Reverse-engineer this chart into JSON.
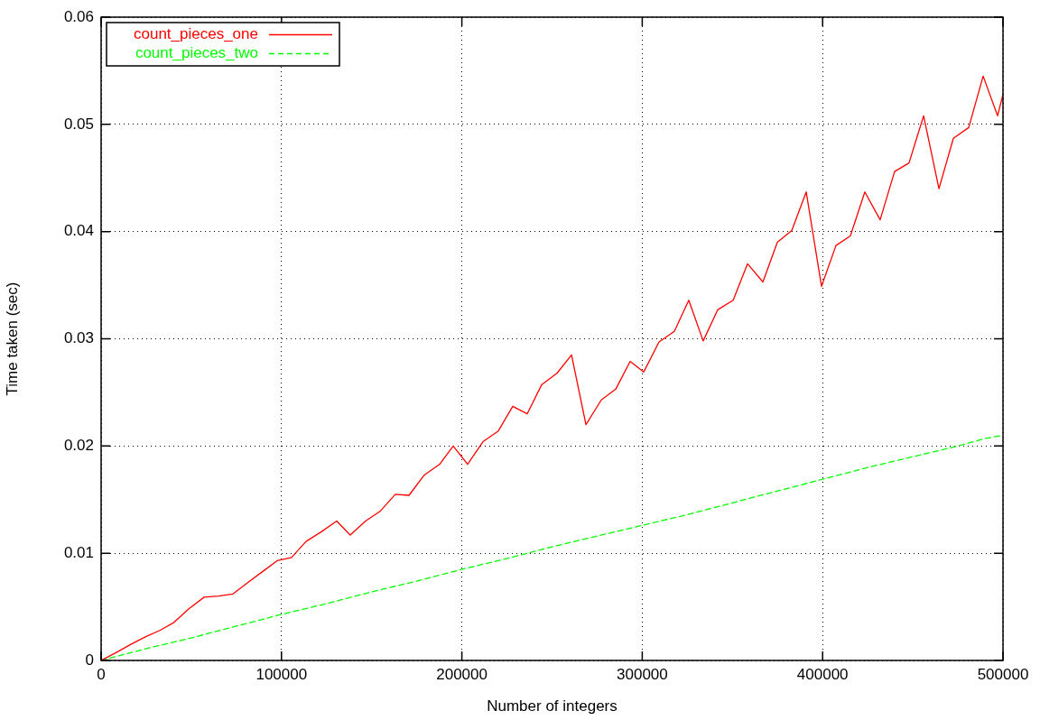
{
  "chart_data": {
    "type": "line",
    "xlabel": "Number of integers",
    "ylabel": "Time taken (sec)",
    "xlim": [
      0,
      500000
    ],
    "xticks": [
      0,
      100000,
      200000,
      300000,
      400000,
      500000
    ],
    "ylim": [
      0,
      0.06
    ],
    "yticks": [
      0,
      0.01,
      0.02,
      0.03,
      0.04,
      0.05,
      0.06
    ],
    "grid": true,
    "legend": "top left",
    "marker": "none",
    "series": [
      {
        "name": "count_pieces_one",
        "color": "#ff0000",
        "line_style": "solid",
        "x": [
          0,
          8000,
          16500,
          24500,
          32500,
          40000,
          48500,
          57100,
          65100,
          73100,
          81600,
          89600,
          97600,
          105600,
          113600,
          122100,
          130600,
          138100,
          146600,
          154600,
          163100,
          170700,
          179200,
          187700,
          195200,
          203200,
          211700,
          220200,
          228200,
          236200,
          244200,
          252800,
          260800,
          268800,
          277300,
          285300,
          293300,
          300800,
          309300,
          317800,
          325800,
          333800,
          341800,
          350400,
          358400,
          366900,
          374900,
          382900,
          390900,
          399400,
          407400,
          415400,
          423400,
          431900,
          439900,
          447900,
          456000,
          464500,
          472500,
          481000,
          489000,
          497000,
          500000
        ],
        "values": [
          0,
          0.0007,
          0.0015,
          0.0022,
          0.0028,
          0.0035,
          0.0048,
          0.0059,
          0.006,
          0.0062,
          0.0073,
          0.0083,
          0.0093,
          0.0096,
          0.0111,
          0.012,
          0.013,
          0.0117,
          0.013,
          0.0139,
          0.0155,
          0.0154,
          0.0173,
          0.0183,
          0.02,
          0.0183,
          0.0204,
          0.0214,
          0.0237,
          0.023,
          0.0257,
          0.0268,
          0.0285,
          0.022,
          0.0243,
          0.0253,
          0.0279,
          0.0269,
          0.0297,
          0.0307,
          0.0336,
          0.0298,
          0.0327,
          0.0336,
          0.037,
          0.0353,
          0.039,
          0.0401,
          0.0437,
          0.0349,
          0.0387,
          0.0396,
          0.0437,
          0.0411,
          0.0456,
          0.0464,
          0.0508,
          0.044,
          0.0487,
          0.0497,
          0.0545,
          0.0508,
          0.0528
        ]
      },
      {
        "name": "count_pieces_two",
        "color": "#00ff00",
        "line_style": "dashed",
        "x": [
          0,
          25000,
          50000,
          75000,
          100000,
          125000,
          150000,
          175000,
          200000,
          225000,
          250000,
          275000,
          300000,
          325000,
          350000,
          375000,
          400000,
          425000,
          450000,
          475000,
          490000,
          500000
        ],
        "values": [
          0,
          0.0011,
          0.0021,
          0.0032,
          0.0043,
          0.0053,
          0.0064,
          0.0074,
          0.0085,
          0.0095,
          0.0106,
          0.0116,
          0.0126,
          0.0136,
          0.0147,
          0.0158,
          0.0169,
          0.018,
          0.019,
          0.02,
          0.0207,
          0.021
        ]
      }
    ]
  }
}
